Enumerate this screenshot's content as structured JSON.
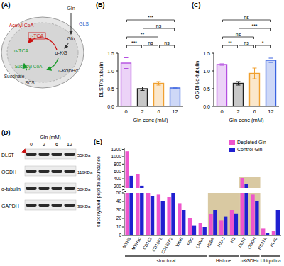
{
  "chart_data": [
    {
      "panel": "(B)",
      "type": "bar",
      "y_label": "DLST/α-tubulin",
      "x_label": "Gln conc (mM)",
      "categories": [
        "0",
        "2",
        "6",
        "12"
      ],
      "values": [
        1.22,
        0.5,
        0.65,
        0.52
      ],
      "errors": [
        0.15,
        0.05,
        0.05,
        0.02
      ],
      "colors": [
        "#b44ee0",
        "#222222",
        "#f0a030",
        "#3a63e0"
      ],
      "ylim": [
        0,
        1.5
      ],
      "yticks": [
        {
          "value": 0,
          "label": "0.0"
        },
        0.5,
        {
          "value": 1,
          "label": "1.0"
        },
        1.5
      ],
      "significance": [
        {
          "from": 0,
          "to": 1,
          "label": "***"
        },
        {
          "from": 1,
          "to": 2,
          "label": "ns"
        },
        {
          "from": 2,
          "to": 3,
          "label": "ns"
        },
        {
          "from": 0,
          "to": 2,
          "label": "**"
        },
        {
          "from": 1,
          "to": 3,
          "label": "ns"
        },
        {
          "from": 0,
          "to": 3,
          "label": "***"
        }
      ]
    },
    {
      "panel": "(C)",
      "type": "bar",
      "y_label": "OGDH/α-tubulin",
      "x_label": "Gln conc (mM)",
      "categories": [
        "0",
        "2",
        "6",
        "12"
      ],
      "values": [
        1.18,
        0.65,
        0.93,
        1.3
      ],
      "errors": [
        0.02,
        0.05,
        0.15,
        0.06
      ],
      "colors": [
        "#b44ee0",
        "#222222",
        "#f0a030",
        "#3a63e0"
      ],
      "ylim": [
        0,
        1.5
      ],
      "yticks": [
        {
          "value": 0,
          "label": "0.0"
        },
        0.5,
        {
          "value": 1,
          "label": "1.0"
        },
        1.5
      ],
      "significance": [
        {
          "from": 0,
          "to": 1,
          "label": "**"
        },
        {
          "from": 1,
          "to": 2,
          "label": "ns"
        },
        {
          "from": 2,
          "to": 3,
          "label": "*"
        },
        {
          "from": 0,
          "to": 2,
          "label": "ns"
        },
        {
          "from": 1,
          "to": 3,
          "label": "***"
        },
        {
          "from": 0,
          "to": 3,
          "label": "ns"
        }
      ]
    },
    {
      "panel": "(E)",
      "type": "bar",
      "y_label": "succinylated peptide abundance",
      "categories": [
        "MYH9",
        "MYH10",
        "CD162",
        "CD16F2",
        "CD162F2",
        "VIME",
        "FBC",
        "LMNA",
        "H2BB",
        "H2AJ",
        "H3",
        "DLST",
        "OGDH",
        "RS27A",
        "RL40"
      ],
      "series": [
        {
          "name": "Depleted Gln",
          "color": "#ee55cc",
          "values": [
            1150,
            520,
            50,
            48,
            45,
            38,
            20,
            15,
            25,
            18,
            30,
            420,
            48,
            8,
            5
          ]
        },
        {
          "name": "Control Gln",
          "color": "#2020d0",
          "values": [
            480,
            210,
            46,
            40,
            50,
            30,
            12,
            10,
            30,
            22,
            26,
            250,
            40,
            3,
            30
          ]
        }
      ],
      "ylim": [
        0,
        1250
      ],
      "axis_break": [
        50,
        150
      ],
      "yticks": [
        0,
        10,
        20,
        30,
        40,
        50,
        200,
        400,
        600,
        800,
        1000,
        1200
      ],
      "legend": "top-right",
      "groups": [
        {
          "label": "structural",
          "start": 0,
          "end": 7
        },
        {
          "label": "Histone",
          "start": 8,
          "end": 10,
          "highlight": 50
        },
        {
          "label": "αKGDHc",
          "start": 11,
          "end": 12,
          "highlight": 450
        },
        {
          "label": "Ubiquitina",
          "start": 13,
          "end": 14
        }
      ]
    }
  ],
  "diagram": {
    "panel": "(A)",
    "nodes": [
      {
        "text": "Acetyl CoA",
        "color": "#cc1111"
      },
      {
        "text": "r-TCA",
        "color": "#cc1111"
      },
      {
        "text": "Gln",
        "color": "#222222"
      },
      {
        "text": "GLS",
        "color": "#2266cc"
      },
      {
        "text": "Glu",
        "color": "#222222"
      },
      {
        "text": "α-KG",
        "color": "#222222"
      },
      {
        "text": "o-TCA",
        "color": "#1a9a2a"
      },
      {
        "text": "Succinyl CoA",
        "color": "#1a9a2a"
      },
      {
        "text": "α-KGDHC",
        "color": "#222222"
      },
      {
        "text": "Succinate",
        "color": "#222222"
      },
      {
        "text": "SCS",
        "color": "#222222"
      }
    ]
  },
  "blot": {
    "panel": "(D)",
    "title": "Gln (mM)",
    "lanes": [
      "0",
      "2",
      "6",
      "12"
    ],
    "rows": [
      {
        "label": "DLST",
        "size": "55KDa"
      },
      {
        "label": "OGDH",
        "size": "116KDa"
      },
      {
        "label": "α-tubulin",
        "size": "50KDa"
      },
      {
        "label": "GAPDH",
        "size": "36KDa"
      }
    ]
  }
}
